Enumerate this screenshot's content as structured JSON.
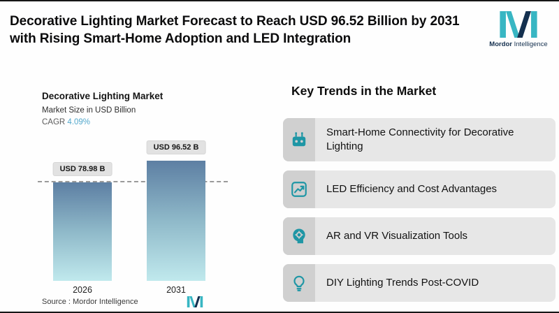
{
  "header": {
    "title": "Decorative Lighting Market Forecast to Reach USD 96.52 Billion by 2031 with Rising Smart-Home Adoption and LED Integration",
    "brand": {
      "bold": "Mordor",
      "regular": " Intelligence"
    }
  },
  "chart": {
    "title": "Decorative Lighting Market",
    "subtitle": "Market Size in USD Billion",
    "cagr_label": "CAGR ",
    "cagr_value": "4.09%",
    "source": "Source :  Mordor Intelligence"
  },
  "chart_data": {
    "type": "bar",
    "title": "Decorative Lighting Market",
    "ylabel": "Market Size in USD Billion",
    "cagr": "4.09%",
    "categories": [
      "2026",
      "2031"
    ],
    "values": [
      78.98,
      96.52
    ],
    "value_labels": [
      "USD 78.98 B",
      "USD 96.52 B"
    ],
    "ylim": [
      0,
      100
    ],
    "grid": "off",
    "legend": "none",
    "annotations": [
      "dashed reference line at 2026 bar top (78.98)"
    ]
  },
  "trends": {
    "heading": "Key Trends in the Market",
    "items": [
      {
        "icon": "smart-home-icon",
        "label": "Smart-Home Connectivity for Decorative Lighting"
      },
      {
        "icon": "chart-growth-icon",
        "label": "LED Efficiency and Cost Advantages"
      },
      {
        "icon": "ar-vr-head-icon",
        "label": "AR and VR Visualization Tools"
      },
      {
        "icon": "lightbulb-icon",
        "label": "DIY Lighting Trends Post-COVID"
      }
    ]
  },
  "colors": {
    "accent_teal": "#1e96a5",
    "logo_teal": "#38b6c3",
    "logo_navy": "#14304f",
    "cagr_blue": "#54a9cd",
    "bar_top": "#5d7fa3",
    "bar_bottom": "#c0e9ed",
    "card_bg": "#e7e7e7",
    "icon_box_bg": "#d0d0d0"
  }
}
